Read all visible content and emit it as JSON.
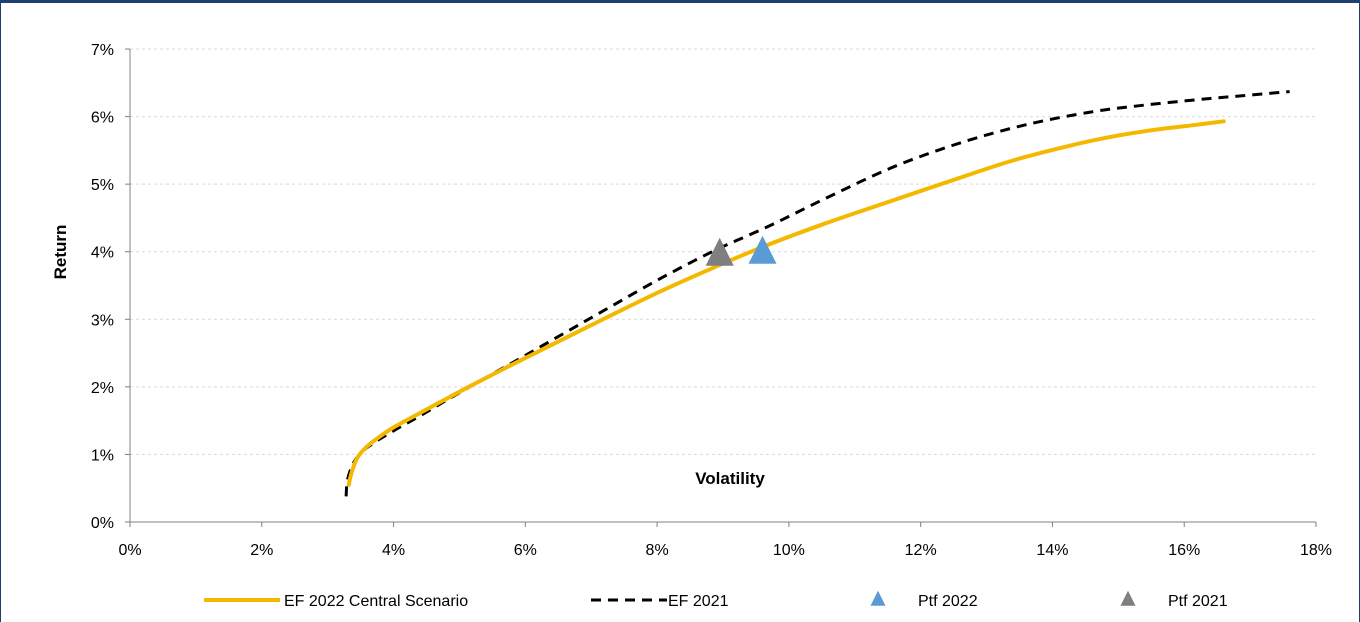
{
  "chart_data": {
    "type": "line",
    "xlabel": "Volatility",
    "ylabel": "Return",
    "xlim": [
      0,
      18
    ],
    "ylim": [
      0,
      7
    ],
    "x_ticks": [
      {
        "value": 0,
        "label": "0%"
      },
      {
        "value": 2,
        "label": "2%"
      },
      {
        "value": 4,
        "label": "4%"
      },
      {
        "value": 6,
        "label": "6%"
      },
      {
        "value": 8,
        "label": "8%"
      },
      {
        "value": 10,
        "label": "10%"
      },
      {
        "value": 12,
        "label": "12%"
      },
      {
        "value": 14,
        "label": "14%"
      },
      {
        "value": 16,
        "label": "16%"
      },
      {
        "value": 18,
        "label": "18%"
      }
    ],
    "y_ticks": [
      {
        "value": 0,
        "label": "0%"
      },
      {
        "value": 1,
        "label": "1%"
      },
      {
        "value": 2,
        "label": "2%"
      },
      {
        "value": 3,
        "label": "3%"
      },
      {
        "value": 4,
        "label": "4%"
      },
      {
        "value": 5,
        "label": "5%"
      },
      {
        "value": 6,
        "label": "6%"
      },
      {
        "value": 7,
        "label": "7%"
      }
    ],
    "grid": "horizontal dashed",
    "legend_position": "bottom",
    "series": [
      {
        "name": "EF 2022 Central Scenario",
        "kind": "line",
        "style": "solid",
        "color": "#f5b800",
        "x": [
          3.32,
          3.36,
          3.45,
          3.6,
          3.8,
          4.0,
          4.3,
          4.7,
          5.2,
          5.8,
          6.5,
          7.2,
          8.0,
          8.8,
          9.6,
          10.5,
          11.4,
          12.4,
          13.4,
          14.4,
          15.0,
          15.6,
          16.2,
          16.6
        ],
        "y": [
          0.55,
          0.72,
          0.95,
          1.12,
          1.27,
          1.4,
          1.56,
          1.77,
          2.03,
          2.33,
          2.67,
          3.01,
          3.39,
          3.74,
          4.07,
          4.4,
          4.7,
          5.03,
          5.35,
          5.6,
          5.72,
          5.81,
          5.88,
          5.93
        ]
      },
      {
        "name": "EF 2021",
        "kind": "line",
        "style": "dashed",
        "color": "#000000",
        "x": [
          3.28,
          3.3,
          3.38,
          3.5,
          3.7,
          4.0,
          4.4,
          4.8,
          5.3,
          5.9,
          6.6,
          7.3,
          8.1,
          8.9,
          9.7,
          10.6,
          11.6,
          12.6,
          13.6,
          14.6,
          15.4,
          16.2,
          16.9,
          17.6
        ],
        "y": [
          0.38,
          0.62,
          0.85,
          1.02,
          1.17,
          1.35,
          1.57,
          1.8,
          2.08,
          2.41,
          2.8,
          3.19,
          3.63,
          4.03,
          4.38,
          4.81,
          5.26,
          5.61,
          5.88,
          6.07,
          6.17,
          6.25,
          6.31,
          6.37
        ]
      },
      {
        "name": "Ptf 2022",
        "kind": "marker",
        "marker": "triangle",
        "color": "#5b9bd5",
        "x": [
          9.6
        ],
        "y": [
          3.98
        ]
      },
      {
        "name": "Ptf 2021",
        "kind": "marker",
        "marker": "triangle",
        "color": "#7f7f7f",
        "x": [
          8.95
        ],
        "y": [
          3.95
        ]
      }
    ]
  }
}
